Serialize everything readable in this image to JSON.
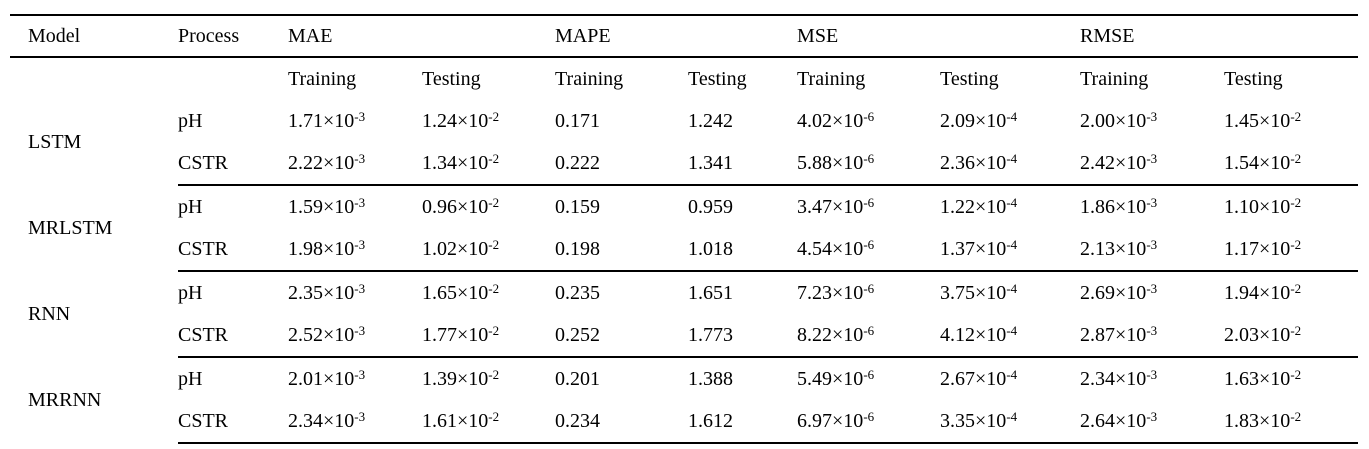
{
  "page": {
    "background_color": "#ffffff",
    "text_color": "#000000",
    "rule_color": "#000000"
  },
  "table": {
    "header": {
      "model": "Model",
      "process": "Process",
      "metrics": [
        "MAE",
        "MAPE",
        "MSE",
        "RMSE"
      ],
      "sub_training": "Training",
      "sub_testing": "Testing"
    },
    "groups": [
      {
        "model": "LSTM",
        "rows": [
          {
            "process": "pH",
            "values": [
              "1.71×10^-3",
              "1.24×10^-2",
              "0.171",
              "1.242",
              "4.02×10^-6",
              "2.09×10^-4",
              "2.00×10^-3",
              "1.45×10^-2"
            ]
          },
          {
            "process": "CSTR",
            "values": [
              "2.22×10^-3",
              "1.34×10^-2",
              "0.222",
              "1.341",
              "5.88×10^-6",
              "2.36×10^-4",
              "2.42×10^-3",
              "1.54×10^-2"
            ]
          }
        ]
      },
      {
        "model": "MRLSTM",
        "rows": [
          {
            "process": "pH",
            "values": [
              "1.59×10^-3",
              "0.96×10^-2",
              "0.159",
              "0.959",
              "3.47×10^-6",
              "1.22×10^-4",
              "1.86×10^-3",
              "1.10×10^-2"
            ]
          },
          {
            "process": "CSTR",
            "values": [
              "1.98×10^-3",
              "1.02×10^-2",
              "0.198",
              "1.018",
              "4.54×10^-6",
              "1.37×10^-4",
              "2.13×10^-3",
              "1.17×10^-2"
            ]
          }
        ]
      },
      {
        "model": "RNN",
        "rows": [
          {
            "process": "pH",
            "values": [
              "2.35×10^-3",
              "1.65×10^-2",
              "0.235",
              "1.651",
              "7.23×10^-6",
              "3.75×10^-4",
              "2.69×10^-3",
              "1.94×10^-2"
            ]
          },
          {
            "process": "CSTR",
            "values": [
              "2.52×10^-3",
              "1.77×10^-2",
              "0.252",
              "1.773",
              "8.22×10^-6",
              "4.12×10^-4",
              "2.87×10^-3",
              "2.03×10^-2"
            ]
          }
        ]
      },
      {
        "model": "MRRNN",
        "rows": [
          {
            "process": "pH",
            "values": [
              "2.01×10^-3",
              "1.39×10^-2",
              "0.201",
              "1.388",
              "5.49×10^-6",
              "2.67×10^-4",
              "2.34×10^-3",
              "1.63×10^-2"
            ]
          },
          {
            "process": "CSTR",
            "values": [
              "2.34×10^-3",
              "1.61×10^-2",
              "0.234",
              "1.612",
              "6.97×10^-6",
              "3.35×10^-4",
              "2.64×10^-3",
              "1.83×10^-2"
            ]
          }
        ]
      }
    ]
  }
}
